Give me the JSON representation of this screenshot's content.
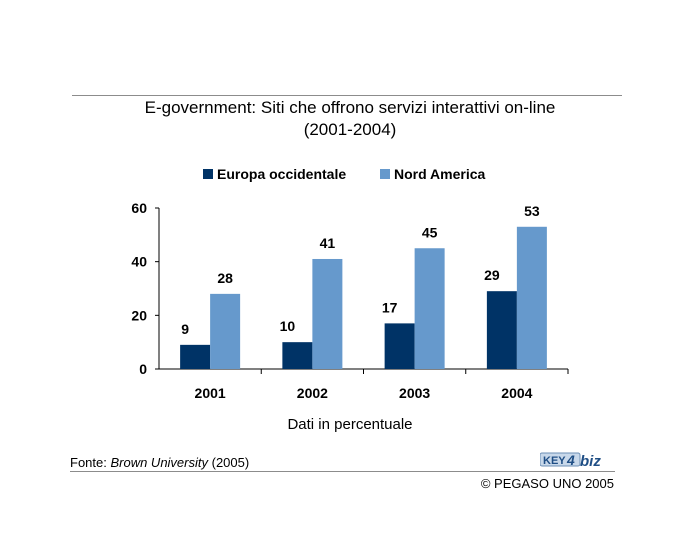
{
  "title_line1": "E-government: Siti che offrono servizi interattivi on-line",
  "title_line2": "(2001-2004)",
  "chart_data": {
    "type": "bar",
    "categories": [
      "2001",
      "2002",
      "2003",
      "2004"
    ],
    "series": [
      {
        "name": "Europa occidentale",
        "values": [
          9,
          10,
          17,
          29
        ],
        "color": "#003366"
      },
      {
        "name": "Nord America",
        "values": [
          28,
          41,
          45,
          53
        ],
        "color": "#6699cc"
      }
    ],
    "ylim": [
      0,
      60
    ],
    "yticks": [
      0,
      20,
      40,
      60
    ],
    "xlabel": "Dati in percentuale",
    "ylabel": "",
    "legend": "top",
    "grid": false
  },
  "source": {
    "prefix": "Fonte: ",
    "name": "Brown University",
    "suffix": " (2005)"
  },
  "logo_icon": "key4biz-logo",
  "logo_text": "KEY4biz",
  "copyright": "© PEGASO UNO 2005"
}
